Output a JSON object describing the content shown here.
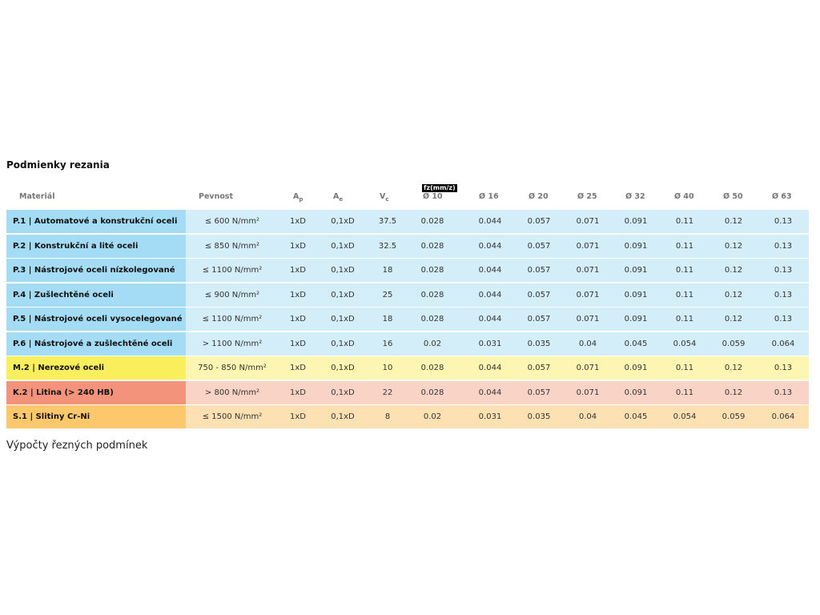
{
  "title": "Podmienky rezania",
  "fz_label": "fz(mm/z)",
  "header": [
    {
      "main": "Materiál"
    },
    {
      "main": "Pevnost"
    },
    {
      "main": "A",
      "sub": "p"
    },
    {
      "main": "A",
      "sub": "e"
    },
    {
      "main": "V",
      "sub": "c"
    },
    {
      "main": "Ø 10"
    },
    {
      "main": "Ø 16"
    },
    {
      "main": "Ø 20"
    },
    {
      "main": "Ø 25"
    },
    {
      "main": "Ø 32"
    },
    {
      "main": "Ø 40"
    },
    {
      "main": "Ø 50"
    },
    {
      "main": "Ø 63"
    }
  ],
  "rows": [
    {
      "color": "#d4eef9",
      "label_color": "#a3dcf4",
      "cells": [
        "P.1 | Automatové a konstrukční oceli",
        "≤ 600 N/mm²",
        "1xD",
        "0,1xD",
        "37.5",
        "0.028",
        "0.044",
        "0.057",
        "0.071",
        "0.091",
        "0.11",
        "0.12",
        "0.13"
      ]
    },
    {
      "color": "#d4eef9",
      "label_color": "#a3dcf4",
      "cells": [
        "P.2 | Konstrukční a lité oceli",
        "≤ 850 N/mm²",
        "1xD",
        "0,1xD",
        "32.5",
        "0.028",
        "0.044",
        "0.057",
        "0.071",
        "0.091",
        "0.11",
        "0.12",
        "0.13"
      ]
    },
    {
      "color": "#d4eef9",
      "label_color": "#a3dcf4",
      "cells": [
        "P.3 | Nástrojové oceli nízkolegované",
        "≤ 1100 N/mm²",
        "1xD",
        "0,1xD",
        "18",
        "0.028",
        "0.044",
        "0.057",
        "0.071",
        "0.091",
        "0.11",
        "0.12",
        "0.13"
      ]
    },
    {
      "color": "#d4eef9",
      "label_color": "#a3dcf4",
      "cells": [
        "P.4 | Zušlechtěné oceli",
        "≤ 900 N/mm²",
        "1xD",
        "0,1xD",
        "25",
        "0.028",
        "0.044",
        "0.057",
        "0.071",
        "0.091",
        "0.11",
        "0.12",
        "0.13"
      ]
    },
    {
      "color": "#d4eef9",
      "label_color": "#a3dcf4",
      "cells": [
        "P.5 | Nástrojové oceli vysocelegované",
        "≤ 1100 N/mm²",
        "1xD",
        "0,1xD",
        "18",
        "0.028",
        "0.044",
        "0.057",
        "0.071",
        "0.091",
        "0.11",
        "0.12",
        "0.13"
      ]
    },
    {
      "color": "#d4eef9",
      "label_color": "#a3dcf4",
      "cells": [
        "P.6 | Nástrojové a zušlechtěné oceli",
        "> 1100 N/mm²",
        "1xD",
        "0,1xD",
        "16",
        "0.02",
        "0.031",
        "0.035",
        "0.04",
        "0.045",
        "0.054",
        "0.059",
        "0.064"
      ]
    },
    {
      "color": "#fdf6b2",
      "label_color": "#f9ee5c",
      "cells": [
        "M.2 | Nerezové oceli",
        "750 - 850 N/mm²",
        "1xD",
        "0,1xD",
        "10",
        "0.028",
        "0.044",
        "0.057",
        "0.071",
        "0.091",
        "0.11",
        "0.12",
        "0.13"
      ]
    },
    {
      "color": "#f9d4c6",
      "label_color": "#f4937b",
      "cells": [
        "K.2 | Litina (> 240 HB)",
        "> 800 N/mm²",
        "1xD",
        "0,1xD",
        "22",
        "0.028",
        "0.044",
        "0.057",
        "0.071",
        "0.091",
        "0.11",
        "0.12",
        "0.13"
      ]
    },
    {
      "color": "#fde1b2",
      "label_color": "#fcc86b",
      "cells": [
        "S.1 | Slitiny Cr-Ni",
        "≤ 1500 N/mm²",
        "1xD",
        "0,1xD",
        "8",
        "0.02",
        "0.031",
        "0.035",
        "0.04",
        "0.045",
        "0.054",
        "0.059",
        "0.064"
      ]
    }
  ],
  "footer": "Výpočty řezných podmínek"
}
